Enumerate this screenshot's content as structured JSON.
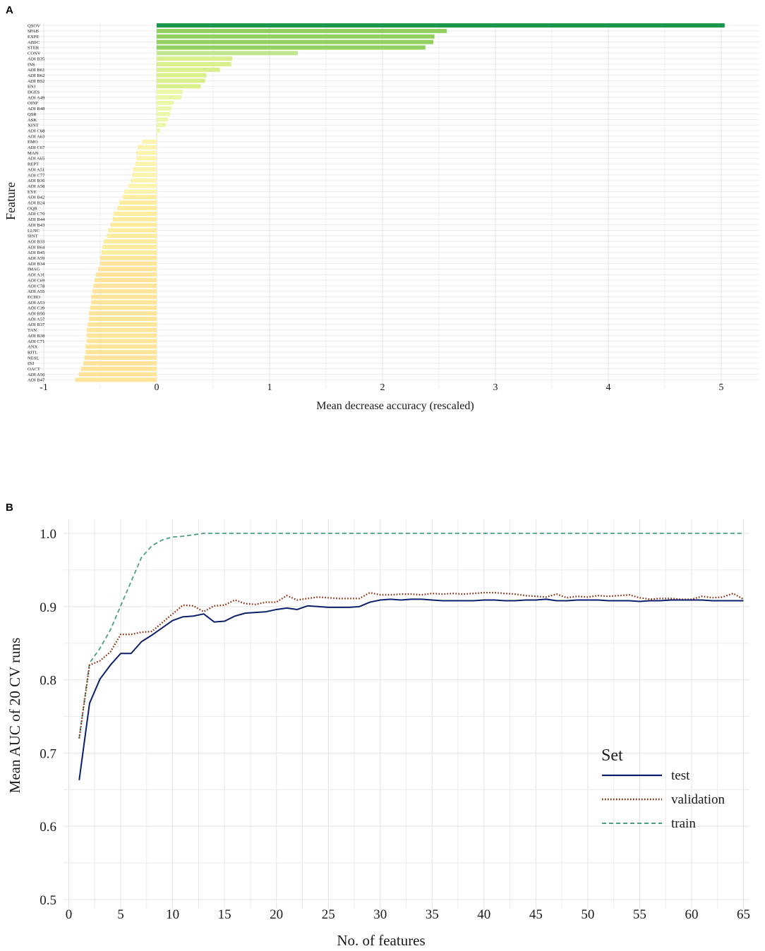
{
  "chart_data": [
    {
      "panel": "A",
      "type": "bar",
      "orientation": "horizontal",
      "xlabel": "Mean decrease accuracy (rescaled)",
      "ylabel": "Feature",
      "xlim": [
        -1,
        5.2
      ],
      "xticks": [
        -1,
        0,
        1,
        2,
        3,
        4,
        5
      ],
      "colors": {
        "top": "#1a9850",
        "high": "#91cf60",
        "mid": "#d9ef8b",
        "low": "#fee08b",
        "neg": "#fdd991"
      },
      "categories": [
        "QSOV",
        "SPAB",
        "EXPE",
        "ABSC",
        "STER",
        "CONV",
        "ADI B35",
        "INS",
        "ADI B61",
        "ADI B62",
        "ADI B52",
        "ENJ",
        "DGES",
        "ADI A49",
        "OINF",
        "ADI B48",
        "QSR",
        "ASK",
        "XINT",
        "ADI C68",
        "ADI A63",
        "EMO",
        "ADI C67",
        "MAN",
        "ADI A65",
        "REPT",
        "ADI A51",
        "ADI C77",
        "ADI B36",
        "ADI A58",
        "EYE",
        "ADI B42",
        "ADI B24",
        "OQR",
        "ADI C70",
        "ADI B44",
        "ADI B43",
        "LLNC",
        "SINT",
        "ADI B33",
        "ADI B64",
        "ADI B45",
        "ADI A59",
        "ADI B34",
        "IMAG",
        "ADI A31",
        "ADI C69",
        "ADI C78",
        "ADI A55",
        "ECHO",
        "ADI A53",
        "ADI C39",
        "ADI B50",
        "ADI A57",
        "ADI B37",
        "TAN",
        "ADI B38",
        "ADI C71",
        "ANX",
        "RITL",
        "NESL",
        "INJ",
        "OACT",
        "ADI A56",
        "ADI B47"
      ],
      "values": [
        5.03,
        2.57,
        2.46,
        2.45,
        2.38,
        1.25,
        0.67,
        0.66,
        0.56,
        0.44,
        0.43,
        0.39,
        0.23,
        0.22,
        0.15,
        0.13,
        0.12,
        0.1,
        0.08,
        0.03,
        0.0,
        -0.13,
        -0.17,
        -0.18,
        -0.18,
        -0.19,
        -0.21,
        -0.22,
        -0.23,
        -0.25,
        -0.29,
        -0.3,
        -0.33,
        -0.35,
        -0.38,
        -0.39,
        -0.41,
        -0.43,
        -0.44,
        -0.47,
        -0.48,
        -0.49,
        -0.5,
        -0.5,
        -0.52,
        -0.54,
        -0.55,
        -0.56,
        -0.57,
        -0.58,
        -0.58,
        -0.59,
        -0.6,
        -0.6,
        -0.61,
        -0.62,
        -0.62,
        -0.62,
        -0.63,
        -0.63,
        -0.64,
        -0.65,
        -0.67,
        -0.69,
        -0.72
      ]
    },
    {
      "panel": "B",
      "type": "line",
      "xlabel": "No. of features",
      "ylabel": "Mean  AUC of 20 CV runs",
      "xlim": [
        0,
        65
      ],
      "ylim": [
        0.5,
        1.0
      ],
      "xticks": [
        0,
        5,
        10,
        15,
        20,
        25,
        30,
        35,
        40,
        45,
        50,
        55,
        60,
        65
      ],
      "yticks": [
        "0.5",
        "0.6",
        "0.7",
        "0.8",
        "0.9",
        "1.0"
      ],
      "legend_title": "Set",
      "legend_position": "bottom-right",
      "series": [
        {
          "name": "test",
          "color": "#0b1f6b",
          "style": "solid",
          "values": [
            0.663,
            0.768,
            0.801,
            0.82,
            0.836,
            0.836,
            0.852,
            0.861,
            0.871,
            0.881,
            0.886,
            0.887,
            0.89,
            0.879,
            0.88,
            0.887,
            0.891,
            0.892,
            0.893,
            0.896,
            0.898,
            0.896,
            0.901,
            0.9,
            0.899,
            0.899,
            0.899,
            0.9,
            0.906,
            0.909,
            0.91,
            0.909,
            0.91,
            0.91,
            0.909,
            0.908,
            0.908,
            0.908,
            0.908,
            0.909,
            0.909,
            0.908,
            0.908,
            0.909,
            0.909,
            0.91,
            0.908,
            0.908,
            0.909,
            0.909,
            0.909,
            0.908,
            0.908,
            0.908,
            0.907,
            0.908,
            0.908,
            0.909,
            0.909,
            0.909,
            0.909,
            0.908,
            0.908,
            0.908,
            0.908
          ]
        },
        {
          "name": "validation",
          "color": "#8b2500",
          "style": "dotted",
          "values": [
            0.72,
            0.82,
            0.826,
            0.838,
            0.862,
            0.862,
            0.865,
            0.866,
            0.878,
            0.89,
            0.902,
            0.901,
            0.893,
            0.901,
            0.902,
            0.909,
            0.904,
            0.903,
            0.906,
            0.906,
            0.915,
            0.909,
            0.911,
            0.913,
            0.912,
            0.911,
            0.911,
            0.911,
            0.919,
            0.916,
            0.916,
            0.917,
            0.917,
            0.916,
            0.918,
            0.917,
            0.918,
            0.917,
            0.918,
            0.919,
            0.919,
            0.918,
            0.917,
            0.915,
            0.914,
            0.913,
            0.917,
            0.912,
            0.914,
            0.913,
            0.915,
            0.914,
            0.915,
            0.916,
            0.912,
            0.91,
            0.911,
            0.911,
            0.91,
            0.91,
            0.914,
            0.912,
            0.913,
            0.918,
            0.91
          ]
        },
        {
          "name": "train",
          "color": "#4aa080",
          "style": "dashed",
          "values": [
            0.72,
            0.823,
            0.843,
            0.868,
            0.901,
            0.934,
            0.967,
            0.983,
            0.991,
            0.995,
            0.996,
            0.998,
            1.0,
            1.0,
            1.0,
            1.0,
            1.0,
            1.0,
            1.0,
            1.0,
            1.0,
            1.0,
            1.0,
            1.0,
            1.0,
            1.0,
            1.0,
            1.0,
            1.0,
            1.0,
            1.0,
            1.0,
            1.0,
            1.0,
            1.0,
            1.0,
            1.0,
            1.0,
            1.0,
            1.0,
            1.0,
            1.0,
            1.0,
            1.0,
            1.0,
            1.0,
            1.0,
            1.0,
            1.0,
            1.0,
            1.0,
            1.0,
            1.0,
            1.0,
            1.0,
            1.0,
            1.0,
            1.0,
            1.0,
            1.0,
            1.0,
            1.0,
            1.0,
            1.0,
            1.0
          ]
        }
      ]
    }
  ]
}
